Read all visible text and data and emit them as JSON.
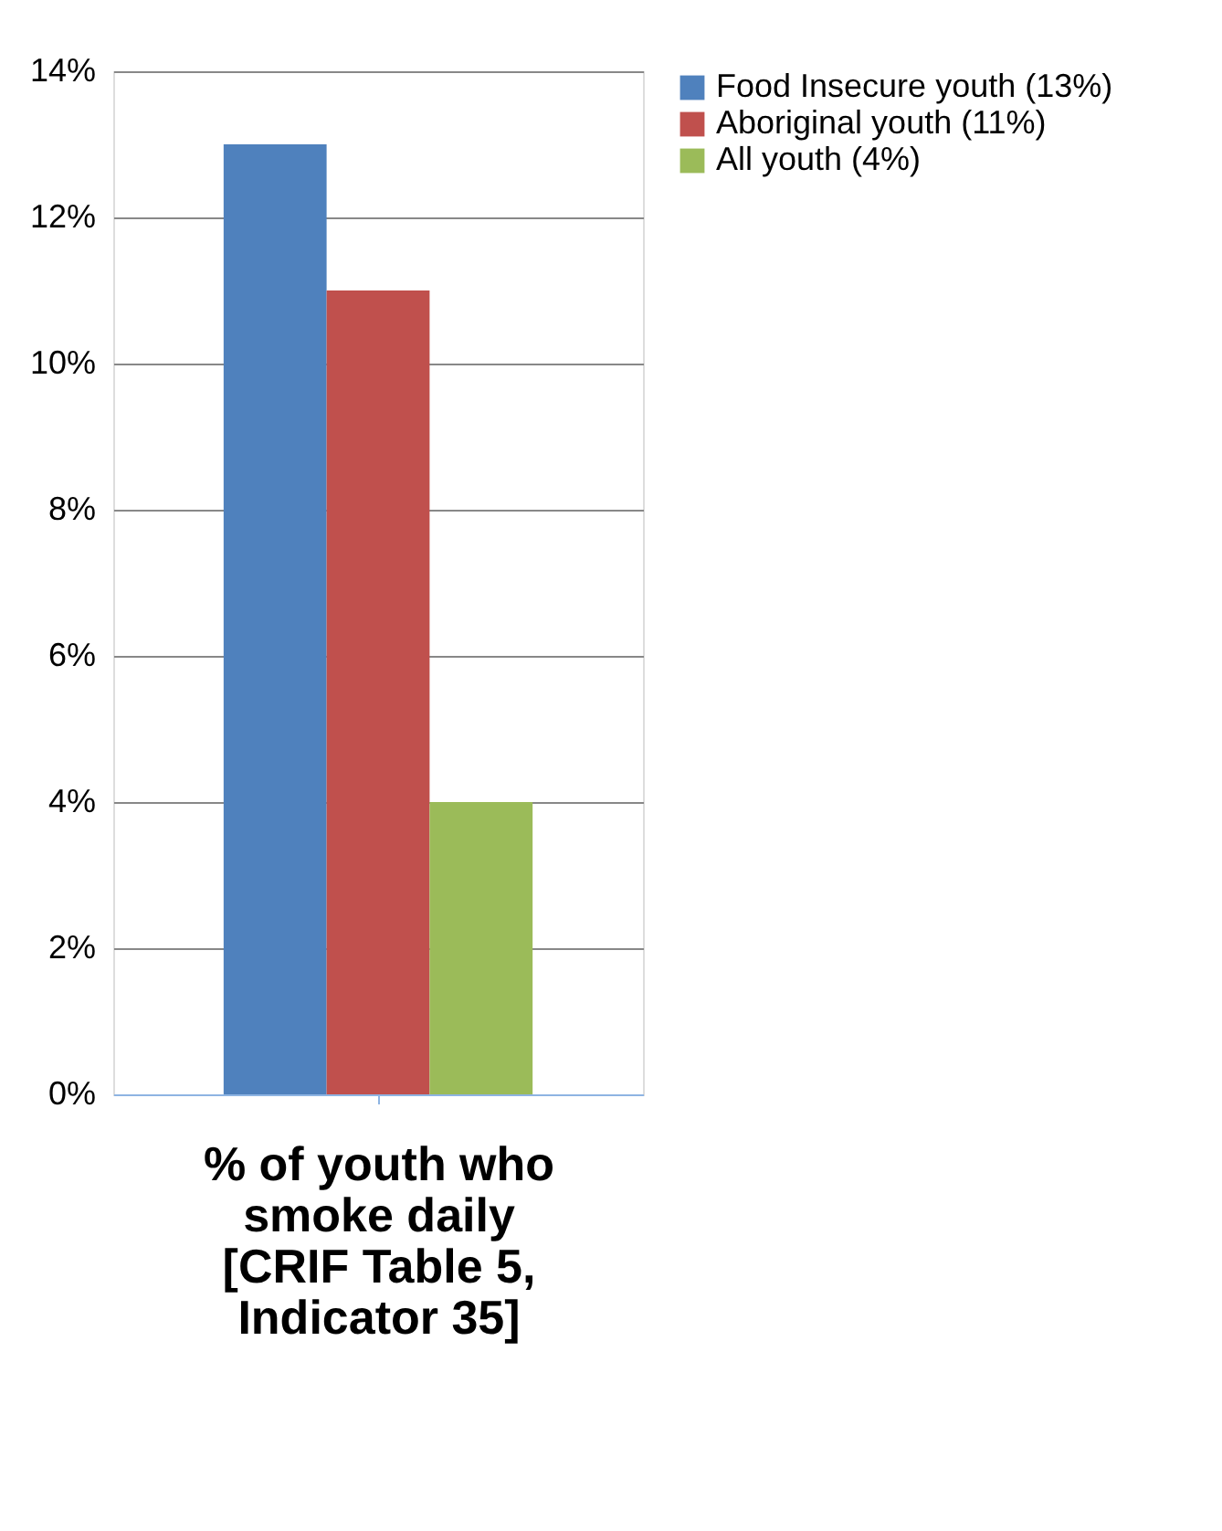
{
  "chart_data": {
    "type": "bar",
    "xlabel": "% of youth who smoke daily [CRIF Table 5, Indicator 35]",
    "categories": [
      null
    ],
    "series": [
      {
        "name": "Food Insecure youth (13%)",
        "color": "#4f81bd",
        "values": [
          13
        ]
      },
      {
        "name": "Aboriginal youth (11%)",
        "color": "#c0504d",
        "values": [
          11
        ]
      },
      {
        "name": "All youth (4%)",
        "color": "#9bbb59",
        "values": [
          4
        ]
      }
    ],
    "ylim": [
      0,
      14
    ],
    "yticks": [
      {
        "value": 0,
        "label": "0%"
      },
      {
        "value": 2,
        "label": "2%"
      },
      {
        "value": 4,
        "label": "4%"
      },
      {
        "value": 6,
        "label": "6%"
      },
      {
        "value": 8,
        "label": "8%"
      },
      {
        "value": 10,
        "label": "10%"
      },
      {
        "value": 12,
        "label": "12%"
      },
      {
        "value": 14,
        "label": "14%"
      }
    ],
    "grid": "y",
    "legend": "right"
  }
}
